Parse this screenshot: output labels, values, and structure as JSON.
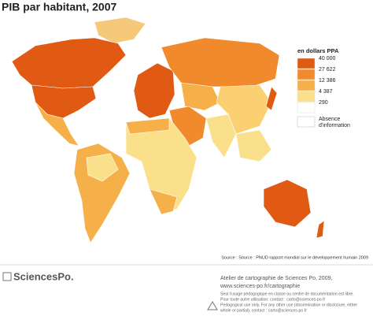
{
  "header": {
    "title": "PIB par habitant, 2007"
  },
  "legend": {
    "title": "en dollars PPA",
    "items": [
      {
        "label": "40 000",
        "color": "#e05a14"
      },
      {
        "label": "27 622",
        "color": "#f08a2c"
      },
      {
        "label": "12 386",
        "color": "#f6b04a"
      },
      {
        "label": "4 387",
        "color": "#fbe08c"
      },
      {
        "label": "290",
        "color": "#ffffff"
      }
    ],
    "absence": {
      "lines": [
        "Absence",
        "d'information"
      ],
      "color": "#ffffff"
    }
  },
  "source": "Source : Source : PNUD rapport mondial sur le développement humain 2009",
  "footer": {
    "logo": "SciencesPo.",
    "credit": [
      "Atelier de cartographie de Sciences Po, 2009,",
      "www.sciences-po.fr/cartographie"
    ],
    "notice": [
      "Seul l'usage pédagogique en classe ou centre de documentation est libre.",
      "Pour toute autre utilisation: contact : carto@sciences-po.fr",
      "Pedagogical use only. For any other use (dissemination or disclosure, either",
      "whole or partial), contact : carto@sciences-po.fr"
    ]
  }
}
